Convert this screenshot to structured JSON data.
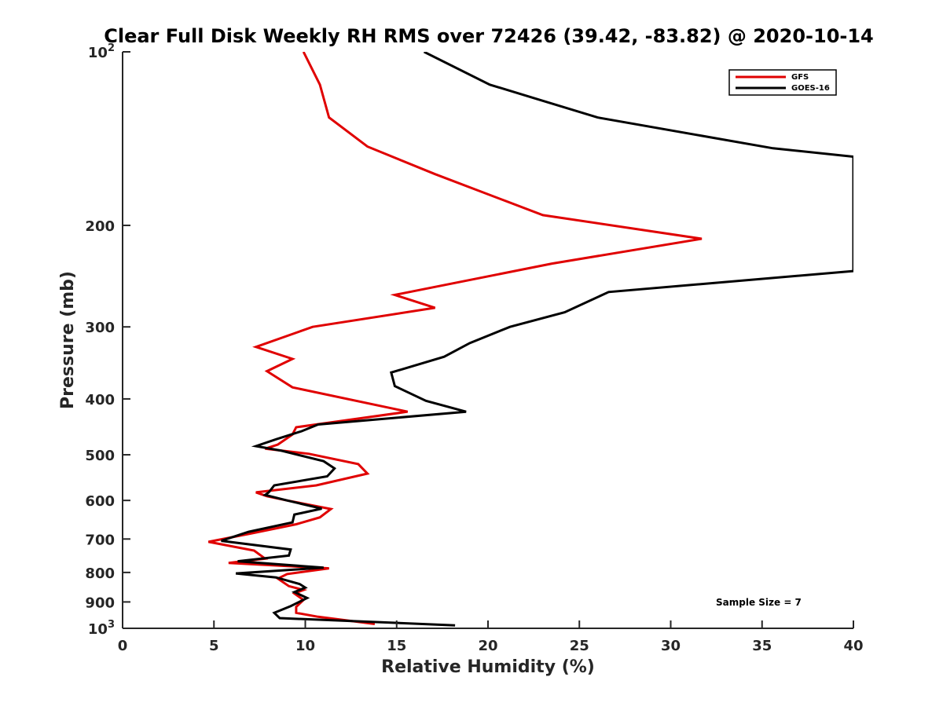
{
  "chart_data": {
    "type": "line",
    "title": "Clear Full Disk Weekly RH RMS over 72426 (39.42, -83.82) @ 2020-10-14",
    "xlabel": "Relative Humidity (%)",
    "ylabel": "Pressure (mb)",
    "xlim": [
      0,
      40
    ],
    "ylim": [
      100,
      1000
    ],
    "yscale": "log",
    "y_reversed": true,
    "legend_position": "top-right",
    "x_ticks": [
      "0",
      "5",
      "10",
      "15",
      "20",
      "25",
      "30",
      "35",
      "40"
    ],
    "y_ticks": [
      {
        "value": 100,
        "base": "10",
        "exp": "2"
      },
      {
        "value": 200,
        "label": "200"
      },
      {
        "value": 300,
        "label": "300"
      },
      {
        "value": 400,
        "label": "400"
      },
      {
        "value": 500,
        "label": "500"
      },
      {
        "value": 600,
        "label": "600"
      },
      {
        "value": 700,
        "label": "700"
      },
      {
        "value": 800,
        "label": "800"
      },
      {
        "value": 900,
        "label": "900"
      },
      {
        "value": 1000,
        "base": "10",
        "exp": "3"
      }
    ],
    "series": [
      {
        "name": "GFS",
        "color": "#e00000",
        "points": [
          [
            9.9,
            100
          ],
          [
            10.8,
            114
          ],
          [
            11.3,
            130
          ],
          [
            13.4,
            146
          ],
          [
            17.1,
            163
          ],
          [
            23.0,
            192
          ],
          [
            31.7,
            211
          ],
          [
            23.5,
            233
          ],
          [
            14.9,
            264
          ],
          [
            17.1,
            278
          ],
          [
            10.4,
            300
          ],
          [
            7.3,
            325
          ],
          [
            9.3,
            341
          ],
          [
            7.9,
            358
          ],
          [
            9.3,
            382
          ],
          [
            15.6,
            421
          ],
          [
            9.5,
            448
          ],
          [
            9.3,
            461
          ],
          [
            8.5,
            480
          ],
          [
            7.8,
            488
          ],
          [
            10.2,
            498
          ],
          [
            12.9,
            519
          ],
          [
            13.4,
            539
          ],
          [
            10.6,
            565
          ],
          [
            7.3,
            581
          ],
          [
            7.9,
            590
          ],
          [
            9.0,
            600
          ],
          [
            11.4,
            621
          ],
          [
            10.8,
            642
          ],
          [
            9.5,
            660
          ],
          [
            7.0,
            685
          ],
          [
            4.7,
            708
          ],
          [
            7.2,
            733
          ],
          [
            7.8,
            757
          ],
          [
            5.8,
            770
          ],
          [
            11.3,
            787
          ],
          [
            9.0,
            805
          ],
          [
            8.5,
            820
          ],
          [
            9.1,
            845
          ],
          [
            9.9,
            858
          ],
          [
            9.4,
            870
          ],
          [
            9.9,
            893
          ],
          [
            9.5,
            918
          ],
          [
            9.5,
            940
          ],
          [
            10.7,
            955
          ],
          [
            13.8,
            983
          ]
        ]
      },
      {
        "name": "GOES-16",
        "color": "#000000",
        "points": [
          [
            16.5,
            100
          ],
          [
            20.1,
            114
          ],
          [
            26.0,
            130
          ],
          [
            35.6,
            147
          ],
          [
            40.0,
            152
          ],
          [
            40.0,
            240
          ],
          [
            26.6,
            261
          ],
          [
            24.2,
            283
          ],
          [
            21.2,
            300
          ],
          [
            19.0,
            320
          ],
          [
            17.6,
            338
          ],
          [
            14.7,
            360
          ],
          [
            14.9,
            380
          ],
          [
            16.6,
            403
          ],
          [
            18.8,
            421
          ],
          [
            10.7,
            443
          ],
          [
            9.8,
            455
          ],
          [
            8.4,
            470
          ],
          [
            7.3,
            483
          ],
          [
            8.7,
            492
          ],
          [
            11.0,
            513
          ],
          [
            11.6,
            528
          ],
          [
            11.2,
            545
          ],
          [
            8.3,
            565
          ],
          [
            8.0,
            581
          ],
          [
            7.8,
            587
          ],
          [
            9.0,
            600
          ],
          [
            10.9,
            620
          ],
          [
            9.4,
            635
          ],
          [
            9.3,
            655
          ],
          [
            6.9,
            680
          ],
          [
            5.4,
            705
          ],
          [
            9.2,
            730
          ],
          [
            9.1,
            748
          ],
          [
            6.3,
            765
          ],
          [
            11.0,
            785
          ],
          [
            6.2,
            803
          ],
          [
            8.4,
            816
          ],
          [
            9.7,
            838
          ],
          [
            10.0,
            850
          ],
          [
            9.4,
            865
          ],
          [
            10.1,
            886
          ],
          [
            9.2,
            915
          ],
          [
            8.3,
            940
          ],
          [
            8.6,
            960
          ],
          [
            18.2,
            988
          ]
        ]
      }
    ],
    "annotation": "Sample Size = 7"
  }
}
